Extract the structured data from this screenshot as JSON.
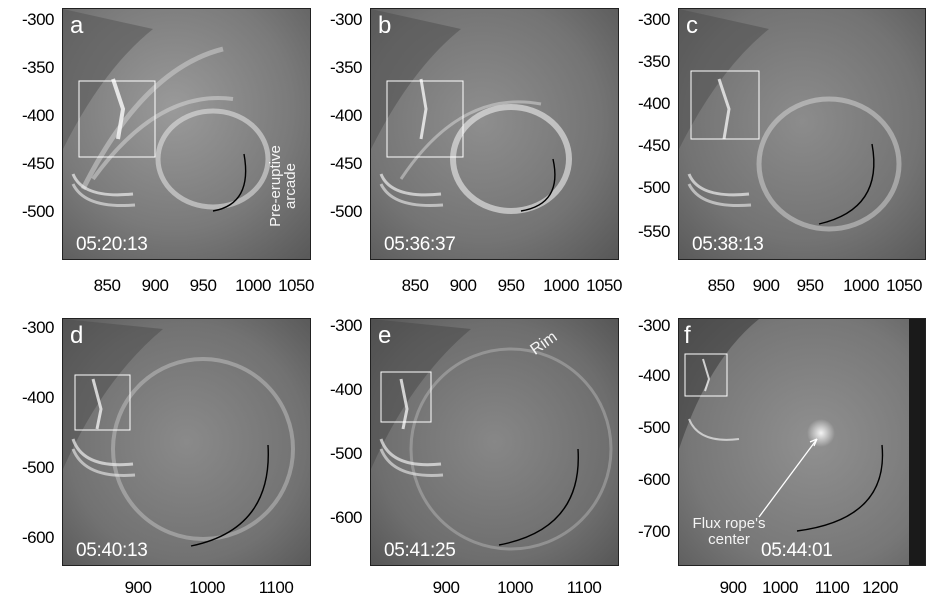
{
  "panels": [
    {
      "label": "a",
      "time": "05:20:13",
      "y_ticks": [
        "-300",
        "-350",
        "-400",
        "-450",
        "-500"
      ],
      "x_ticks": [
        "850",
        "900",
        "950",
        "1000",
        "1050"
      ]
    },
    {
      "label": "b",
      "time": "05:36:37",
      "y_ticks": [
        "-300",
        "-350",
        "-400",
        "-450",
        "-500"
      ],
      "x_ticks": [
        "850",
        "900",
        "950",
        "1000",
        "1050"
      ]
    },
    {
      "label": "c",
      "time": "05:38:13",
      "y_ticks": [
        "-300",
        "-350",
        "-400",
        "-450",
        "-500",
        "-550"
      ],
      "x_ticks": [
        "850",
        "900",
        "950",
        "1000",
        "1050"
      ]
    },
    {
      "label": "d",
      "time": "05:40:13",
      "y_ticks": [
        "-300",
        "-400",
        "-500",
        "-600"
      ],
      "x_ticks": [
        "900",
        "1000",
        "1100"
      ]
    },
    {
      "label": "e",
      "time": "05:41:25",
      "y_ticks": [
        "-300",
        "-400",
        "-500",
        "-600"
      ],
      "x_ticks": [
        "900",
        "1000",
        "1100"
      ]
    },
    {
      "label": "f",
      "time": "05:44:01",
      "y_ticks": [
        "-300",
        "-400",
        "-500",
        "-600",
        "-700"
      ],
      "x_ticks": [
        "900",
        "1000",
        "1100",
        "1200"
      ]
    }
  ],
  "annotations": {
    "pre_eruptive_arcade": "Pre-eruptive arcade",
    "rim": "Rim",
    "flux_rope_center_line1": "Flux rope's",
    "flux_rope_center_line2": "center"
  },
  "colors": {
    "background": "#ffffff",
    "image_base": "#8a8a8a",
    "text_on_image": "#ffffff",
    "axis_text": "#000000"
  }
}
